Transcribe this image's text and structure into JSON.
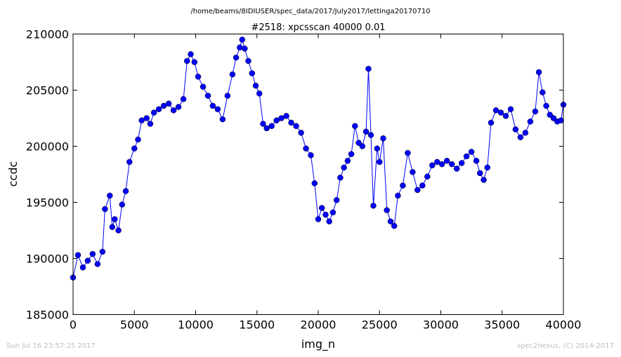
{
  "path_title": "/home/beams/8IDIUSER/spec_data/2017/July2017/lettinga20170710",
  "footer": {
    "timestamp": "Sun Jul 16 23:57:25 2017",
    "credit": "spec2nexus, (C) 2014-2017"
  },
  "chart_data": {
    "type": "line",
    "title": "#2518: xpcsscan 40000 0.01",
    "xlabel": "img_n",
    "ylabel": "ccdc",
    "xlim": [
      0,
      40000
    ],
    "ylim": [
      185000,
      210000
    ],
    "xticks": [
      0,
      5000,
      10000,
      15000,
      20000,
      25000,
      30000,
      35000,
      40000
    ],
    "yticks": [
      185000,
      190000,
      195000,
      200000,
      205000,
      210000
    ],
    "xtick_labels": [
      "0",
      "5000",
      "10000",
      "15000",
      "20000",
      "25000",
      "30000",
      "35000",
      "40000"
    ],
    "ytick_labels": [
      "185000",
      "190000",
      "195000",
      "200000",
      "205000",
      "210000"
    ],
    "grid": false,
    "legend": "none",
    "color": "#0000ff",
    "marker": "circle",
    "series": [
      {
        "x": [
          0,
          400,
          800,
          1200,
          1600,
          2000,
          2400,
          2600,
          3000,
          3200,
          3400,
          3700,
          4000,
          4300,
          4600,
          5000,
          5300,
          5600,
          6000,
          6300,
          6600,
          7000,
          7400,
          7800,
          8200,
          8600,
          9000,
          9300,
          9600,
          9900,
          10200,
          10600,
          11000,
          11400,
          11800,
          12200,
          12600,
          13000,
          13300,
          13600,
          13800,
          14000,
          14300,
          14600,
          14900,
          15200,
          15500,
          15800,
          16200,
          16600,
          17000,
          17400,
          17800,
          18200,
          18600,
          19000,
          19400,
          19700,
          20000,
          20300,
          20600,
          20900,
          21200,
          21500,
          21800,
          22100,
          22400,
          22700,
          23000,
          23300,
          23600,
          23900,
          24100,
          24300,
          24500,
          24800,
          25000,
          25300,
          25600,
          25900,
          26200,
          26500,
          26900,
          27300,
          27700,
          28100,
          28500,
          28900,
          29300,
          29700,
          30100,
          30500,
          30900,
          31300,
          31700,
          32100,
          32500,
          32900,
          33200,
          33500,
          33800,
          34100,
          34500,
          34900,
          35300,
          35700,
          36100,
          36500,
          36900,
          37300,
          37700,
          38000,
          38300,
          38600,
          38900,
          39200,
          39500,
          39800,
          40000
        ],
        "y": [
          188300,
          190300,
          189200,
          189800,
          190400,
          189500,
          190600,
          194400,
          195600,
          192800,
          193500,
          192500,
          194800,
          196000,
          198600,
          199800,
          200600,
          202300,
          202500,
          202000,
          203000,
          203300,
          203600,
          203800,
          203200,
          203500,
          204200,
          207600,
          208200,
          207500,
          206200,
          205300,
          204500,
          203600,
          203300,
          202400,
          204500,
          206400,
          207900,
          208800,
          209500,
          208700,
          207600,
          206500,
          205400,
          204700,
          202000,
          201600,
          201800,
          202300,
          202500,
          202700,
          202100,
          201800,
          201200,
          199800,
          199200,
          196700,
          193500,
          194500,
          193900,
          193300,
          194100,
          195200,
          197200,
          198100,
          198700,
          199300,
          201800,
          200300,
          200000,
          201300,
          206900,
          201000,
          194700,
          199800,
          198600,
          200700,
          194300,
          193300,
          192900,
          195600,
          196500,
          199400,
          197700,
          196100,
          196500,
          197300,
          198300,
          198600,
          198400,
          198700,
          198400,
          198000,
          198500,
          199100,
          199500,
          198700,
          197600,
          197000,
          198100,
          202100,
          203200,
          203000,
          202700,
          203300,
          201500,
          200800,
          201200,
          202200,
          203100,
          206600,
          204800,
          203600,
          202800,
          202500,
          202200,
          202300,
          203700
        ]
      }
    ]
  }
}
